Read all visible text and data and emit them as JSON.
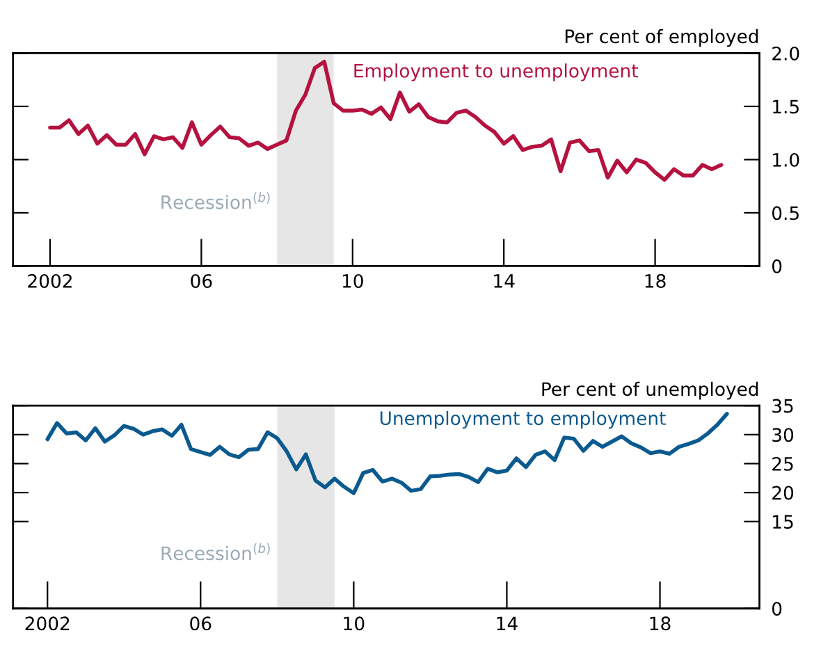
{
  "chart_data": [
    {
      "type": "line",
      "ylabel": "Per cent of employed",
      "x": [
        2002,
        2002.25,
        2002.5,
        2002.75,
        2003,
        2003.25,
        2003.5,
        2003.75,
        2004,
        2004.25,
        2004.5,
        2004.75,
        2005,
        2005.25,
        2005.5,
        2005.75,
        2006,
        2006.25,
        2006.5,
        2006.75,
        2007,
        2007.25,
        2007.5,
        2007.75,
        2008,
        2008.25,
        2008.5,
        2008.75,
        2009,
        2009.25,
        2009.5,
        2009.75,
        2010,
        2010.25,
        2010.5,
        2010.75,
        2011,
        2011.25,
        2011.5,
        2011.75,
        2012,
        2012.25,
        2012.5,
        2012.75,
        2013,
        2013.25,
        2013.5,
        2013.75,
        2014,
        2014.25,
        2014.5,
        2014.75,
        2015,
        2015.25,
        2015.5,
        2015.75,
        2016,
        2016.25,
        2016.5,
        2016.75,
        2017,
        2017.25,
        2017.5,
        2017.75,
        2018,
        2018.25,
        2018.5,
        2018.75,
        2019,
        2019.25,
        2019.5,
        2019.75
      ],
      "series": [
        {
          "name": "Employment to unemployment",
          "color": "#b5123f",
          "values": [
            1.3,
            1.3,
            1.37,
            1.24,
            1.32,
            1.15,
            1.23,
            1.14,
            1.14,
            1.24,
            1.05,
            1.22,
            1.19,
            1.21,
            1.11,
            1.35,
            1.14,
            1.23,
            1.31,
            1.21,
            1.2,
            1.13,
            1.16,
            1.1,
            1.14,
            1.18,
            1.46,
            1.61,
            1.86,
            1.92,
            1.53,
            1.46,
            1.46,
            1.47,
            1.43,
            1.49,
            1.38,
            1.63,
            1.45,
            1.52,
            1.4,
            1.36,
            1.35,
            1.44,
            1.46,
            1.4,
            1.32,
            1.26,
            1.15,
            1.22,
            1.09,
            1.12,
            1.13,
            1.19,
            0.89,
            1.16,
            1.18,
            1.08,
            1.09,
            0.83,
            0.99,
            0.88,
            1.0,
            0.97,
            0.88,
            0.81,
            0.91,
            0.85,
            0.85,
            0.95,
            0.91,
            0.95
          ]
        }
      ],
      "xlim": [
        2001.02,
        2020.76
      ],
      "xticks": [
        {
          "value": 2002,
          "label": "2002"
        },
        {
          "value": 2006,
          "label": "06"
        },
        {
          "value": 2010,
          "label": "10"
        },
        {
          "value": 2014,
          "label": "14"
        },
        {
          "value": 2018,
          "label": "18"
        }
      ],
      "ylim": [
        0,
        2.0
      ],
      "yticks": [
        0,
        {
          "value": 0.5,
          "label": "0.5"
        },
        {
          "value": 1.0,
          "label": "1.0"
        },
        {
          "value": 1.5,
          "label": "1.5"
        },
        {
          "value": 2.0,
          "label": "2.0"
        }
      ],
      "bands": [
        {
          "axis": "x",
          "from": 2008.0,
          "to": 2009.5,
          "label": "Recession$^{(b)}$",
          "color": "#e6e6e6"
        }
      ],
      "grid": false,
      "legend": false
    },
    {
      "type": "line",
      "ylabel": "Per cent of unemployed",
      "x": [
        2002,
        2002.25,
        2002.5,
        2002.75,
        2003,
        2003.25,
        2003.5,
        2003.75,
        2004,
        2004.25,
        2004.5,
        2004.75,
        2005,
        2005.25,
        2005.5,
        2005.75,
        2006,
        2006.25,
        2006.5,
        2006.75,
        2007,
        2007.25,
        2007.5,
        2007.75,
        2008,
        2008.25,
        2008.5,
        2008.75,
        2009,
        2009.25,
        2009.5,
        2009.75,
        2010,
        2010.25,
        2010.5,
        2010.75,
        2011,
        2011.25,
        2011.5,
        2011.75,
        2012,
        2012.25,
        2012.5,
        2012.75,
        2013,
        2013.25,
        2013.5,
        2013.75,
        2014,
        2014.25,
        2014.5,
        2014.75,
        2015,
        2015.25,
        2015.5,
        2015.75,
        2016,
        2016.25,
        2016.5,
        2016.75,
        2017,
        2017.25,
        2017.5,
        2017.75,
        2018,
        2018.25,
        2018.5,
        2018.75,
        2019,
        2019.25,
        2019.5,
        2019.75
      ],
      "series": [
        {
          "name": "Unemployment to employment",
          "color": "#0b5a8f",
          "values": [
            29.2,
            32.0,
            30.2,
            30.4,
            29.0,
            31.1,
            28.8,
            29.9,
            31.5,
            31.0,
            30.0,
            30.6,
            30.9,
            29.8,
            31.7,
            27.5,
            27.0,
            26.5,
            27.9,
            26.6,
            26.1,
            27.4,
            27.5,
            30.4,
            29.4,
            27.1,
            24.0,
            26.6,
            22.1,
            20.9,
            22.4,
            21.0,
            19.9,
            23.4,
            23.9,
            21.9,
            22.4,
            21.7,
            20.3,
            20.6,
            22.8,
            22.9,
            23.1,
            23.2,
            22.7,
            21.8,
            24.1,
            23.5,
            23.8,
            25.9,
            24.4,
            26.5,
            27.1,
            25.6,
            29.5,
            29.3,
            27.2,
            28.9,
            27.9,
            28.8,
            29.7,
            28.5,
            27.8,
            26.8,
            27.1,
            26.7,
            27.9,
            28.4,
            29.0,
            30.2,
            31.7,
            33.6
          ]
        }
      ],
      "xlim": [
        2001.1,
        2020.6
      ],
      "xticks": [
        {
          "value": 2002,
          "label": "2002"
        },
        {
          "value": 2006,
          "label": "06"
        },
        {
          "value": 2010,
          "label": "10"
        },
        {
          "value": 2014,
          "label": "14"
        },
        {
          "value": 2018,
          "label": "18"
        }
      ],
      "ylim": [
        0,
        35
      ],
      "yticks": [
        0,
        15,
        20,
        25,
        30,
        35
      ],
      "bands": [
        {
          "axis": "x",
          "from": 2008.0,
          "to": 2009.5,
          "label": "Recession$^{(b)}$",
          "color": "#e6e6e6"
        }
      ],
      "grid": false,
      "legend": false
    }
  ]
}
